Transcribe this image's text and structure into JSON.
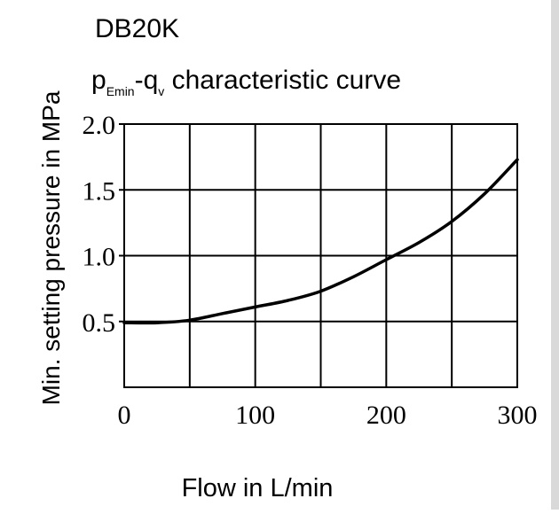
{
  "chart_data": {
    "type": "line",
    "title": "DB20K",
    "subtitle": {
      "p": "p",
      "sub1": "Emin",
      "dash_q": "-q",
      "sub2": "v",
      "rest": " characteristic curve"
    },
    "xlabel": "Flow in L/min",
    "ylabel": "Min. setting pressure in MPa",
    "xlim": [
      0,
      300
    ],
    "ylim": [
      0,
      2.0
    ],
    "x_ticks": [
      {
        "value": 0,
        "label": "0"
      },
      {
        "value": 100,
        "label": "100"
      },
      {
        "value": 200,
        "label": "200"
      },
      {
        "value": 300,
        "label": "300"
      }
    ],
    "y_ticks": [
      {
        "value": 0.5,
        "label": "0.5"
      },
      {
        "value": 1.0,
        "label": "1.0"
      },
      {
        "value": 1.5,
        "label": "1.5"
      },
      {
        "value": 2.0,
        "label": "2.0"
      }
    ],
    "x_gridlines": [
      50,
      100,
      150,
      200,
      250
    ],
    "y_gridlines": [
      0.5,
      1.0,
      1.5
    ],
    "grid": true,
    "series": [
      {
        "x": [
          0,
          25,
          50,
          75,
          100,
          125,
          150,
          175,
          200,
          225,
          250,
          275,
          300
        ],
        "values": [
          0.49,
          0.49,
          0.51,
          0.56,
          0.61,
          0.66,
          0.73,
          0.84,
          0.97,
          1.1,
          1.26,
          1.47,
          1.73
        ]
      }
    ]
  },
  "colors": {
    "line": "#000000",
    "grid": "#000000",
    "background": "#ffffff"
  }
}
